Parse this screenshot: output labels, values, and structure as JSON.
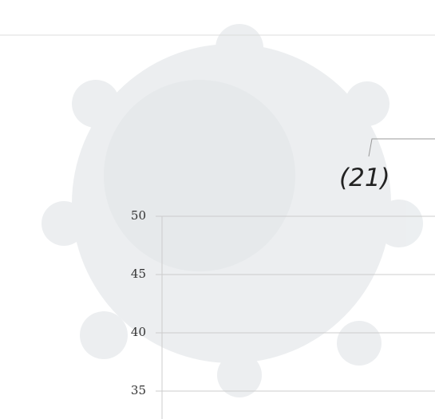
{
  "chart_data": {
    "type": "line",
    "annotation": "(21)",
    "ylim": [
      32.6,
      50
    ],
    "yticks": [
      35,
      40,
      45,
      50
    ],
    "grid": true
  }
}
